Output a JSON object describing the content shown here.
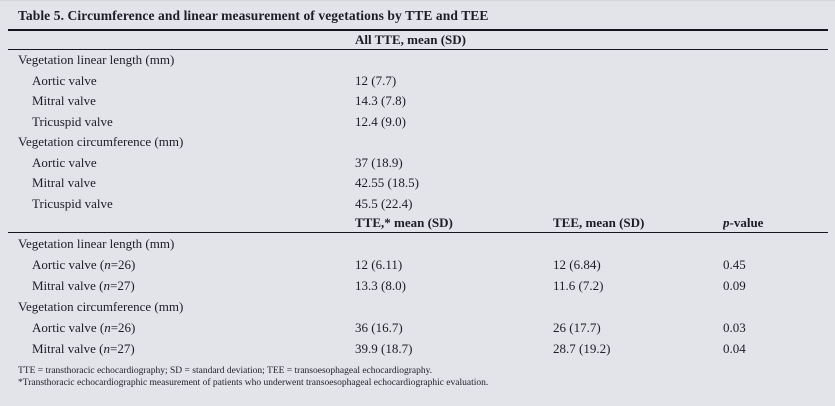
{
  "table": {
    "title": "Table 5. Circumference and linear measurement of vegetations by TTE and TEE",
    "section_all_tte": {
      "header": "All TTE, mean (SD)",
      "rows": [
        {
          "label": "Vegetation linear length (mm)",
          "value": ""
        },
        {
          "label": "Aortic valve",
          "value": "12 (7.7)"
        },
        {
          "label": "Mitral valve",
          "value": "14.3 (7.8)"
        },
        {
          "label": "Tricuspid valve",
          "value": "12.4 (9.0)"
        },
        {
          "label": "Vegetation circumference (mm)",
          "value": ""
        },
        {
          "label": "Aortic valve",
          "value": "37 (18.9)"
        },
        {
          "label": "Mitral valve",
          "value": "42.55 (18.5)"
        },
        {
          "label": "Tricuspid valve",
          "value": "45.5 (22.4)"
        }
      ]
    },
    "section_tte_vs_tee": {
      "headers": {
        "tte": "TTE,* mean (SD)",
        "tee": "TEE, mean (SD)",
        "p": "p-value"
      },
      "rows": [
        {
          "label": "Vegetation linear length (mm)",
          "tte": "",
          "tee": "",
          "p": ""
        },
        {
          "label": "Aortic valve (n=26)",
          "tte": "12 (6.11)",
          "tee": "12 (6.84)",
          "p": "0.45"
        },
        {
          "label": "Mitral valve (n=27)",
          "tte": "13.3 (8.0)",
          "tee": "11.6 (7.2)",
          "p": "0.09"
        },
        {
          "label": "Vegetation circumference (mm)",
          "tte": "",
          "tee": "",
          "p": ""
        },
        {
          "label": "Aortic valve (n=26)",
          "tte": "36 (16.7)",
          "tee": "26 (17.7)",
          "p": "0.03"
        },
        {
          "label": "Mitral valve (n=27)",
          "tte": "39.9 (18.7)",
          "tee": "28.7 (19.2)",
          "p": "0.04"
        }
      ]
    },
    "footnotes": [
      "TTE = transthoracic echocardiography; SD = standard deviation; TEE = transoesophageal echocardiography.",
      "*Transthoracic echocardiographic measurement of patients who underwent transoesophageal echocardiographic evaluation."
    ]
  },
  "colors": {
    "background": "#e3e3ea",
    "text": "#1d1d27",
    "rule": "#15151f"
  }
}
